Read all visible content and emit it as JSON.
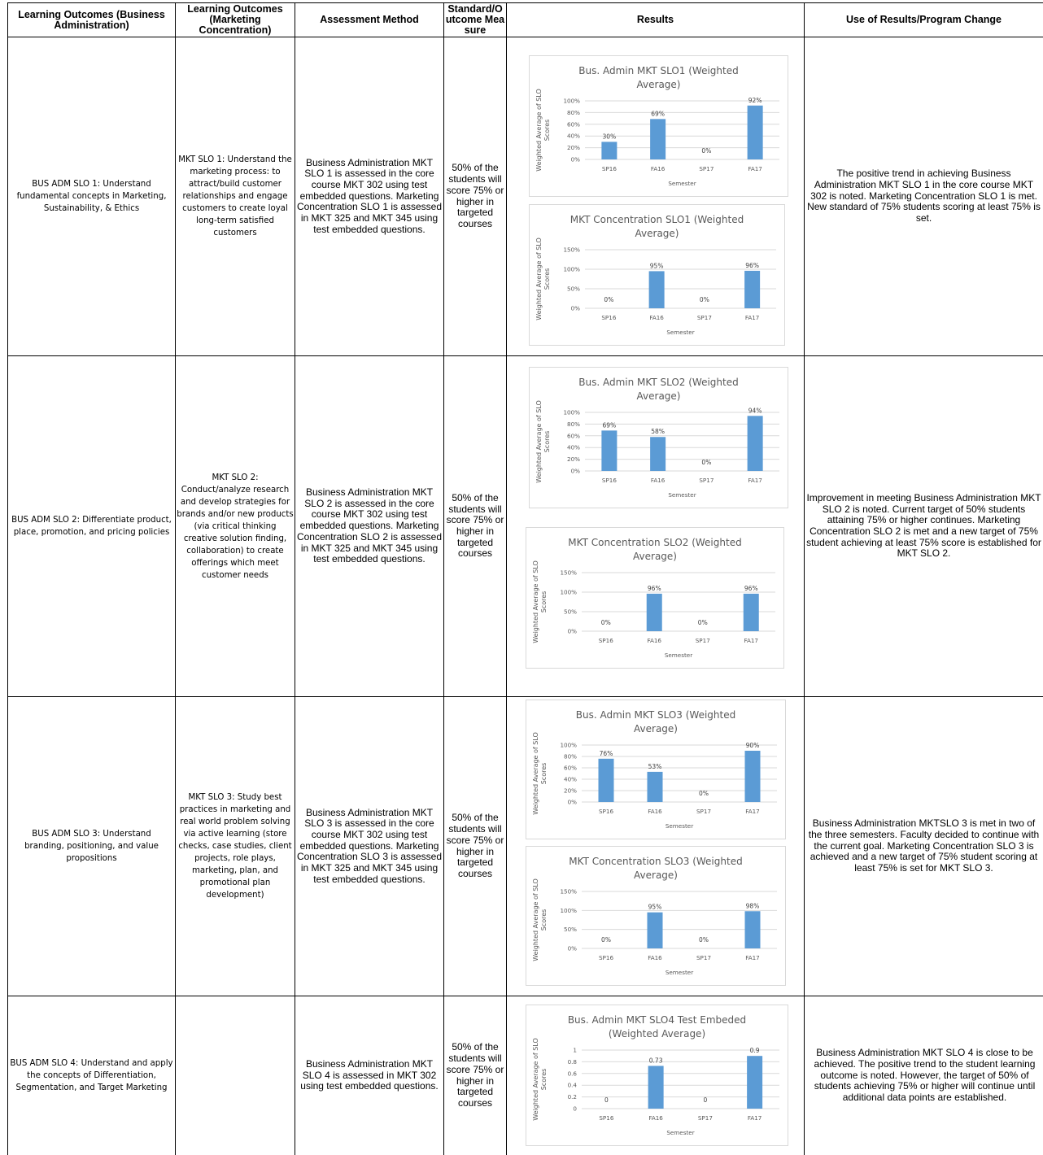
{
  "headers": [
    "Learning Outcomes (Business Administration)",
    "Learning Outcomes (Marketing Concentration)",
    "Assessment Method",
    "Standard/Outcome Measure",
    "Results",
    "Use of Results/Program Change"
  ],
  "rows": [
    {
      "bus_adm": "BUS ADM SLO 1: Understand fundamental concepts in Marketing, Sustainability, & Ethics",
      "mkt": "MKT SLO 1: Understand the marketing process: to attract/build customer relationships and engage customers to create loyal long-term satisfied customers",
      "method": "Business Administration MKT SLO 1 is assessed in the core course MKT 302 using test embedded questions. Marketing Concentration SLO 1 is assessed in MKT 325 and MKT 345 using test embedded questions.",
      "standard": "50% of the students will score 75% or higher in targeted courses",
      "use": "The positive trend in achieving Business Administration MKT SLO 1 in the core course MKT 302 is noted. Marketing Concentration SLO 1 is met. New standard of 75% students scoring at least 75% is set."
    },
    {
      "bus_adm": "BUS ADM SLO 2: Differentiate product, place, promotion, and pricing policies",
      "mkt": "MKT SLO 2: Conduct/analyze research and develop strategies for brands and/or new products (via critical thinking creative solution finding, collaboration) to create offerings which meet customer needs",
      "method": "Business Administration MKT SLO 2 is assessed in the core course MKT 302 using test embedded questions. Marketing Concentration SLO 2 is assessed in MKT 325 and MKT 345 using test embedded questions.",
      "standard": "50% of the students will score 75% or higher in targeted courses",
      "use": "Improvement in meeting Business Administration MKT SLO 2 is noted. Current target of 50% students attaining 75% or higher continues. Marketing Concentration SLO 2 is met and a new target of 75% student achieving at least 75% score is established for MKT SLO 2."
    },
    {
      "bus_adm": "BUS ADM SLO 3: Understand branding, positioning, and value propositions",
      "mkt": "MKT SLO 3: Study best practices in marketing and real world problem solving via active learning (store checks, case studies, client projects, role plays, marketing, plan, and promotional plan development)",
      "method": "Business Administration MKT SLO 3 is assessed in the core course MKT 302 using test embedded questions. Marketing Concentration SLO 3 is assessed in MKT 325 and MKT 345 using test embedded questions.",
      "standard": "50% of the students will score 75% or higher in targeted courses",
      "use": "Business Administration MKTSLO 3 is met in two of the three semesters. Faculty decided to continue with the current goal. Marketing Concentration SLO 3 is achieved and a new target of 75% student scoring at least 75% is set for MKT SLO 3."
    },
    {
      "bus_adm": "BUS ADM SLO 4: Understand and apply the concepts of Differentiation, Segmentation, and Target Marketing",
      "mkt": "",
      "method": "Business Administration MKT SLO 4 is assessed in MKT 302 using test embedded questions.",
      "standard": "50% of the students will score 75% or higher in targeted courses",
      "use": "Business Administration MKT SLO 4 is close to be achieved. The positive trend to the student learning outcome is noted.  However, the target of 50% of students achieving 75% or higher will continue until additional data points are established."
    }
  ],
  "chart_data": [
    {
      "type": "bar",
      "title": "Bus. Admin MKT  SLO1 (Weighted Average)",
      "xlabel": "Semester",
      "ylabel": "Weighted Average of SLO Scores",
      "categories": [
        "SP16",
        "FA16",
        "SP17",
        "FA17"
      ],
      "values": [
        0.3,
        0.69,
        0,
        0.92
      ],
      "labels": [
        "30%",
        "69%",
        "0%",
        "92%"
      ],
      "yticks": [
        "100%",
        "80%",
        "60%",
        "40%",
        "20%",
        "0%"
      ],
      "ylim": [
        0,
        1
      ],
      "color": "#5b9bd5"
    },
    {
      "type": "bar",
      "title": "MKT Concentration SLO1 (Weighted Average)",
      "xlabel": "Semester",
      "ylabel": "Weighted Average of SLO Scores",
      "categories": [
        "SP16",
        "FA16",
        "SP17",
        "FA17"
      ],
      "values": [
        0,
        0.95,
        0,
        0.96
      ],
      "labels": [
        "0%",
        "95%",
        "0%",
        "96%"
      ],
      "yticks": [
        "150%",
        "100%",
        "50%",
        "0%"
      ],
      "ylim": [
        0,
        1.5
      ],
      "color": "#5b9bd5"
    },
    {
      "type": "bar",
      "title": "Bus. Admin MKT  SLO2  (Weighted Average)",
      "xlabel": "Semester",
      "ylabel": "Weighted Average of SLO Scores",
      "categories": [
        "SP16",
        "FA16",
        "SP17",
        "FA17"
      ],
      "values": [
        0.69,
        0.58,
        0,
        0.94
      ],
      "labels": [
        "69%",
        "58%",
        "0%",
        "94%"
      ],
      "yticks": [
        "100%",
        "80%",
        "60%",
        "40%",
        "20%",
        "0%"
      ],
      "ylim": [
        0,
        1
      ],
      "color": "#5b9bd5"
    },
    {
      "type": "bar",
      "title": "MKT Concentration SLO2 (Weighted Average)",
      "xlabel": "Semester",
      "ylabel": "Weighted Average of SLO Scores",
      "categories": [
        "SP16",
        "FA16",
        "SP17",
        "FA17"
      ],
      "values": [
        0,
        0.96,
        0,
        0.96
      ],
      "labels": [
        "0%",
        "96%",
        "0%",
        "96%"
      ],
      "yticks": [
        "150%",
        "100%",
        "50%",
        "0%"
      ],
      "ylim": [
        0,
        1.5
      ],
      "color": "#5b9bd5"
    },
    {
      "type": "bar",
      "title": "Bus. Admin MKT  SLO3  (Weighted Average)",
      "xlabel": "Semester",
      "ylabel": "Weighted Average of SLO Scores",
      "categories": [
        "SP16",
        "FA16",
        "SP17",
        "FA17"
      ],
      "values": [
        0.76,
        0.53,
        0,
        0.9
      ],
      "labels": [
        "76%",
        "53%",
        "0%",
        "90%"
      ],
      "yticks": [
        "100%",
        "80%",
        "60%",
        "40%",
        "20%",
        "0%"
      ],
      "ylim": [
        0,
        1
      ],
      "color": "#5b9bd5"
    },
    {
      "type": "bar",
      "title": "MKT Concentration SLO3 (Weighted Average)",
      "xlabel": "Semester",
      "ylabel": "Weighted Average of SLO Scores",
      "categories": [
        "SP16",
        "FA16",
        "SP17",
        "FA17"
      ],
      "values": [
        0,
        0.95,
        0,
        0.98
      ],
      "labels": [
        "0%",
        "95%",
        "0%",
        "98%"
      ],
      "yticks": [
        "150%",
        "100%",
        "50%",
        "0%"
      ],
      "ylim": [
        0,
        1.5
      ],
      "color": "#5b9bd5"
    },
    {
      "type": "bar",
      "title": "Bus. Admin MKT  SLO4 Test Embeded (Weighted Average)",
      "xlabel": "Semester",
      "ylabel": "Weighted Average of SLO Scores",
      "categories": [
        "SP16",
        "FA16",
        "SP17",
        "FA17"
      ],
      "values": [
        0,
        0.73,
        0,
        0.9
      ],
      "labels": [
        "0",
        "0.73",
        "0",
        "0.9"
      ],
      "yticks": [
        "1",
        "0.8",
        "0.6",
        "0.4",
        "0.2",
        "0"
      ],
      "ylim": [
        0,
        1
      ],
      "color": "#5b9bd5"
    }
  ]
}
